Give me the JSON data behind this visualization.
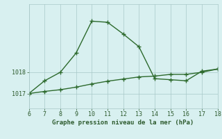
{
  "xlabel": "Graphe pression niveau de la mer (hPa)",
  "xlim": [
    6,
    18
  ],
  "ylim": [
    1016.3,
    1021.2
  ],
  "yticks": [
    1017,
    1018
  ],
  "xticks": [
    6,
    7,
    8,
    9,
    10,
    11,
    12,
    13,
    14,
    15,
    16,
    17,
    18
  ],
  "line1_x": [
    6,
    7,
    8,
    9,
    10,
    11,
    12,
    13,
    14,
    15,
    16,
    17,
    18
  ],
  "line1_y": [
    1017.0,
    1017.6,
    1018.0,
    1018.9,
    1020.4,
    1020.35,
    1019.8,
    1019.2,
    1017.7,
    1017.65,
    1017.6,
    1018.05,
    1018.15
  ],
  "line2_x": [
    6,
    7,
    8,
    9,
    10,
    11,
    12,
    13,
    14,
    15,
    16,
    17,
    18
  ],
  "line2_y": [
    1017.0,
    1017.1,
    1017.18,
    1017.3,
    1017.45,
    1017.58,
    1017.68,
    1017.78,
    1017.82,
    1017.9,
    1017.9,
    1018.0,
    1018.15
  ],
  "line_color": "#2d6a2d",
  "bg_color": "#d8f0f0",
  "grid_color": "#a8c8c8",
  "label_color": "#2d5a2d",
  "marker": "+",
  "marker_size": 4,
  "linewidth": 1.0
}
